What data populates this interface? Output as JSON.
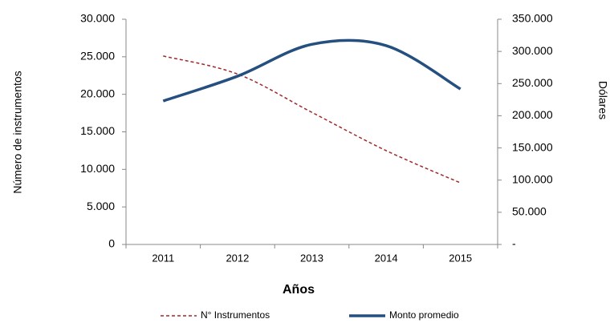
{
  "chart_data": {
    "type": "line",
    "x_label": "Años",
    "y_label": "Número de instrumentos",
    "y2_label": "Dólares",
    "categories": [
      "2011",
      "2012",
      "2013",
      "2014",
      "2015"
    ],
    "series": [
      {
        "name": "N° Instrumentos",
        "color": "#a0282a",
        "dashed": true,
        "values": [
          25100,
          22700,
          17600,
          12500,
          8200
        ]
      },
      {
        "name": "Monto promedio",
        "color": "#254f7f",
        "axis": "y2",
        "values": [
          223000,
          261500,
          311000,
          309000,
          241600
        ]
      }
    ],
    "ylim": [
      0,
      30000
    ],
    "yticks": [
      0,
      {
        "value": 5000,
        "label": "5.000"
      },
      {
        "value": 10000,
        "label": "10.000"
      },
      {
        "value": 15000,
        "label": "15.000"
      },
      {
        "value": 20000,
        "label": "20.000"
      },
      {
        "value": 25000,
        "label": "25.000"
      },
      {
        "value": 30000,
        "label": "30.000"
      }
    ],
    "y2lim": [
      0,
      350000
    ],
    "y2ticks": [
      {
        "value": 0,
        "label": "-"
      },
      {
        "value": 50000,
        "label": "50.000"
      },
      {
        "value": 100000,
        "label": "100.000"
      },
      {
        "value": 150000,
        "label": "150.000"
      },
      {
        "value": 200000,
        "label": "200.000"
      },
      {
        "value": 250000,
        "label": "250.000"
      },
      {
        "value": 300000,
        "label": "300.000"
      },
      {
        "value": 350000,
        "label": "350.000"
      }
    ],
    "grid": false
  }
}
